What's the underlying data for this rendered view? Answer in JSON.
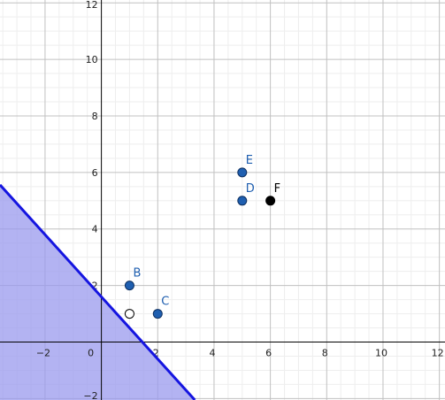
{
  "chart_data": {
    "type": "scatter",
    "title": "",
    "xlabel": "",
    "ylabel": "",
    "xlim": [
      -3.6,
      12.2
    ],
    "ylim": [
      -2.05,
      12.1
    ],
    "grid": true,
    "x_ticks": [
      -2,
      0,
      2,
      4,
      6,
      8,
      10,
      12
    ],
    "y_ticks": [
      -2,
      2,
      4,
      6,
      8,
      10,
      12
    ],
    "x_tick_labels": [
      "−2",
      "0",
      "2",
      "4",
      "6",
      "8",
      "10",
      "12"
    ],
    "y_tick_labels": [
      "−2",
      "2",
      "4",
      "6",
      "8",
      "10",
      "12"
    ],
    "points": [
      {
        "label": "B",
        "x": 1,
        "y": 2,
        "style": "filled-blue"
      },
      {
        "label": "C",
        "x": 2,
        "y": 1,
        "style": "filled-blue"
      },
      {
        "label": "D",
        "x": 5,
        "y": 5,
        "style": "filled-blue"
      },
      {
        "label": "E",
        "x": 5,
        "y": 6,
        "style": "filled-blue"
      },
      {
        "label": "F",
        "x": 6,
        "y": 5,
        "style": "filled-black"
      },
      {
        "label": "",
        "x": 1,
        "y": 1,
        "style": "open"
      }
    ],
    "boundary_line": {
      "slope": -1.1,
      "intercept": 1.6
    },
    "shaded_region": "below-left of boundary line",
    "colors": {
      "shade": "#9999ee",
      "line": "#1515e0",
      "point_blue": "#1f5fb0",
      "point_black": "#000000",
      "label_blue": "#1f5fb0",
      "label_black": "#000000",
      "minor_grid": "#eeeeee",
      "major_grid": "#c0c0c0",
      "axis": "#000000"
    }
  }
}
